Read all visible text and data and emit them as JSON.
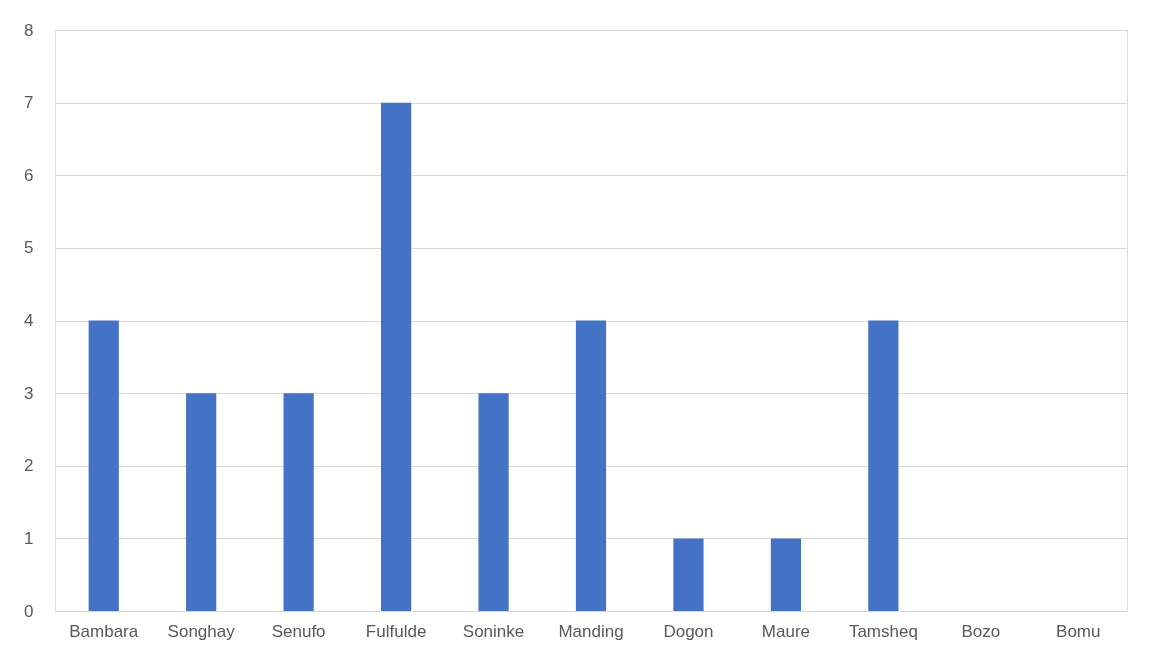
{
  "chart_data": {
    "type": "bar",
    "categories": [
      "Bambara",
      "Songhay",
      "Senufo",
      "Fulfulde",
      "Soninke",
      "Manding",
      "Dogon",
      "Maure",
      "Tamsheq",
      "Bozo",
      "Bomu"
    ],
    "values": [
      4,
      3,
      3,
      7,
      3,
      4,
      1,
      1,
      4,
      0,
      0
    ],
    "color": "#4472c4",
    "ylim": [
      0,
      8
    ],
    "yticks": [
      0,
      1,
      2,
      3,
      4,
      5,
      6,
      7,
      8
    ],
    "grid": "y"
  }
}
